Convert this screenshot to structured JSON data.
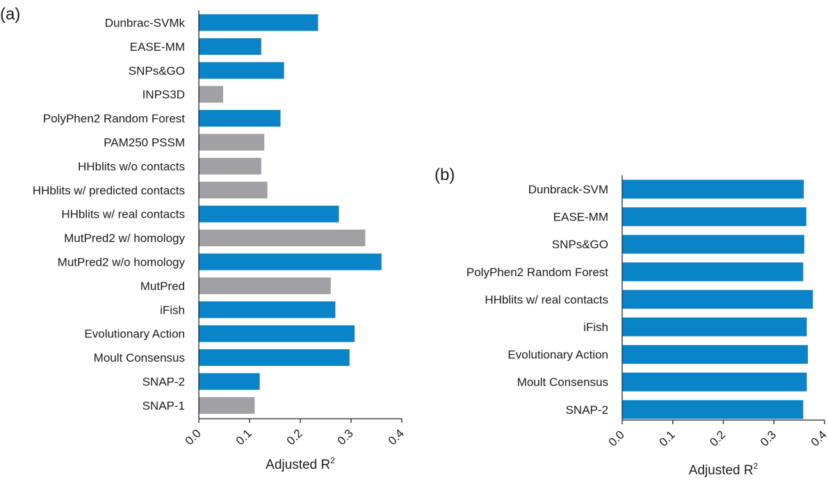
{
  "colors": {
    "blue": "#0a84c8",
    "gray": "#a0a0a5",
    "axis": "#222222"
  },
  "chart_data": [
    {
      "type": "bar",
      "orientation": "horizontal",
      "panel_label": "(a)",
      "xlabel": "Adjusted R",
      "xlabel_sup": "2",
      "xlim": [
        0.0,
        0.4
      ],
      "xticks": [
        "0.0",
        "0.1",
        "0.2",
        "0.3",
        "0.4"
      ],
      "xtick_values": [
        0.0,
        0.1,
        0.2,
        0.3,
        0.4
      ],
      "grid": false,
      "categories": [
        "Dunbrac-SVMk",
        "EASE-MM",
        "SNPs&GO",
        "INPS3D",
        "PolyPhen2 Random Forest",
        "PAM250 PSSM",
        "HHblits w/o contacts",
        "HHblits w/ predicted contacts",
        "HHblits w/ real contacts",
        "MutPred2 w/ homology",
        "MutPred2 w/o homology",
        "MutPred",
        "iFish",
        "Evolutionary Action",
        "Moult Consensus",
        "SNAP-2",
        "SNAP-1"
      ],
      "values": [
        0.235,
        0.123,
        0.168,
        0.048,
        0.161,
        0.129,
        0.123,
        0.135,
        0.276,
        0.328,
        0.36,
        0.26,
        0.269,
        0.307,
        0.297,
        0.12,
        0.11
      ],
      "bar_colors": [
        "blue",
        "blue",
        "blue",
        "gray",
        "blue",
        "gray",
        "gray",
        "gray",
        "blue",
        "gray",
        "blue",
        "gray",
        "blue",
        "blue",
        "blue",
        "blue",
        "gray"
      ]
    },
    {
      "type": "bar",
      "orientation": "horizontal",
      "panel_label": "(b)",
      "xlabel": "Adjusted R",
      "xlabel_sup": "2",
      "xlim": [
        0.0,
        0.4
      ],
      "xticks": [
        "0.0",
        "0.1",
        "0.2",
        "0.3",
        "0.4"
      ],
      "xtick_values": [
        0.0,
        0.1,
        0.2,
        0.3,
        0.4
      ],
      "grid": false,
      "categories": [
        "Dunbrack-SVM",
        "EASE-MM",
        "SNPs&GO",
        "PolyPhen2 Random Forest",
        "HHblits w/ real contacts",
        "iFish",
        "Evolutionary Action",
        "Moult Consensus",
        "SNAP-2"
      ],
      "values": [
        0.359,
        0.364,
        0.36,
        0.358,
        0.377,
        0.365,
        0.367,
        0.365,
        0.358
      ],
      "bar_colors": [
        "blue",
        "blue",
        "blue",
        "blue",
        "blue",
        "blue",
        "blue",
        "blue",
        "blue"
      ]
    }
  ]
}
